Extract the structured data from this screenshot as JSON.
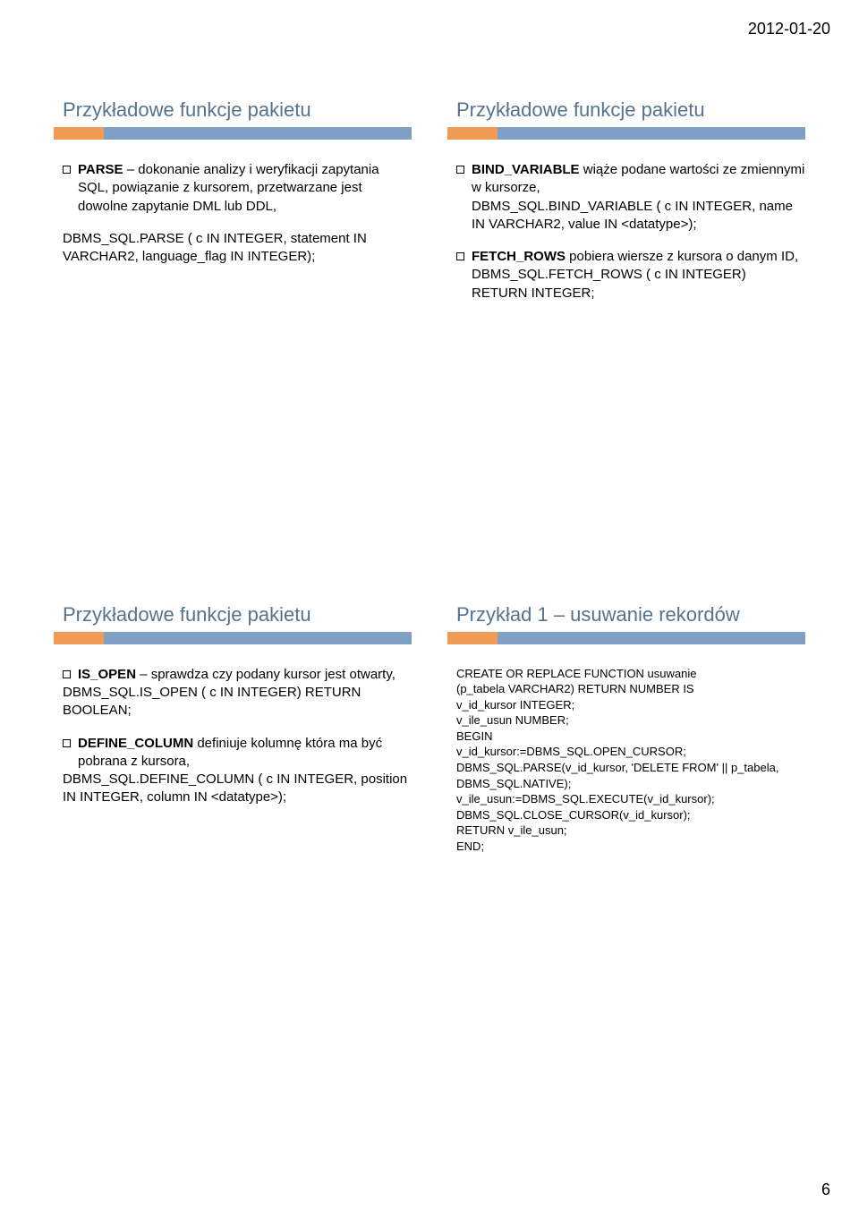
{
  "meta": {
    "date": "2012-01-20",
    "page_number": "6"
  },
  "colors": {
    "title_text": "#56728f",
    "bar_orange": "#f09b55",
    "bar_blue": "#7ea0c4",
    "body_text": "#000000"
  },
  "slides": {
    "s1": {
      "title": "Przykładowe funkcje pakietu",
      "g1": {
        "bold": "PARSE",
        "rest": " – dokonanie analizy i weryfikacji zapytania SQL, powiązanie z kursorem, przetwarzane jest dowolne zapytanie DML lub DDL,"
      },
      "g2": "DBMS_SQL.PARSE ( c IN INTEGER, statement IN VARCHAR2, language_flag IN INTEGER);"
    },
    "s2": {
      "title": "Przykładowe funkcje pakietu",
      "g1": {
        "bold": "BIND_VARIABLE",
        "rest": " wiąże podane wartości ze zmiennymi w kursorze,",
        "l2": "DBMS_SQL.BIND_VARIABLE ( c IN INTEGER, name IN VARCHAR2, value IN <datatype>);"
      },
      "g2": {
        "bold": "FETCH_ROWS",
        "rest": " pobiera wiersze z kursora o danym ID,",
        "l2": "DBMS_SQL.FETCH_ROWS ( c IN INTEGER) RETURN INTEGER;"
      }
    },
    "s3": {
      "title": "Przykładowe funkcje pakietu",
      "g1": {
        "bold": "IS_OPEN",
        "rest": " – sprawdza czy podany kursor jest otwarty,",
        "l2": "DBMS_SQL.IS_OPEN ( c IN INTEGER) RETURN BOOLEAN;"
      },
      "g2": {
        "bold": "DEFINE_COLUMN",
        "rest": " definiuje kolumnę która ma być pobrana z kursora,",
        "l2": "DBMS_SQL.DEFINE_COLUMN ( c IN INTEGER, position IN INTEGER, column IN <datatype>);"
      }
    },
    "s4": {
      "title": "Przykład 1 – usuwanie rekordów",
      "code": "CREATE OR REPLACE FUNCTION usuwanie\n(p_tabela VARCHAR2) RETURN NUMBER IS\nv_id_kursor INTEGER;\nv_ile_usun NUMBER;\nBEGIN\nv_id_kursor:=DBMS_SQL.OPEN_CURSOR;\nDBMS_SQL.PARSE(v_id_kursor, 'DELETE FROM' || p_tabela, DBMS_SQL.NATIVE);\nv_ile_usun:=DBMS_SQL.EXECUTE(v_id_kursor);\nDBMS_SQL.CLOSE_CURSOR(v_id_kursor);\nRETURN v_ile_usun;\nEND;"
    }
  }
}
